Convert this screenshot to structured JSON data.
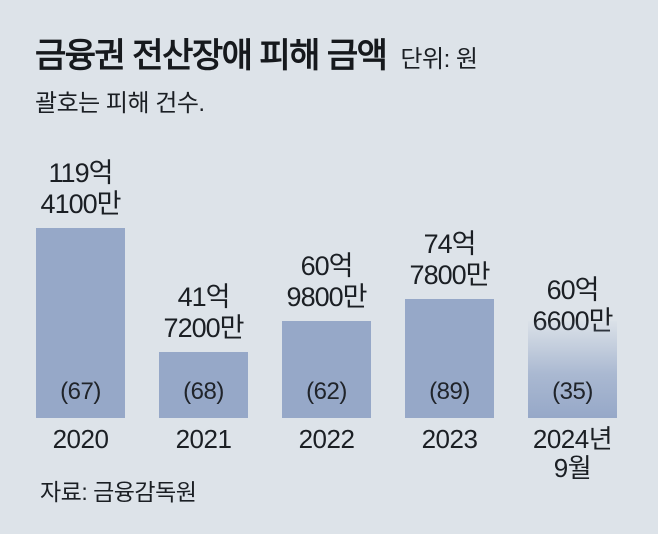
{
  "header": {
    "title": "금융권 전산장애 피해 금액",
    "unit": "단위: 원",
    "subtitle": "괄호는 피해 건수."
  },
  "source": "자료: 금융감독원",
  "colors": {
    "background": "#dde3e9",
    "bar": "#96a8c8",
    "text": "#1b1f24"
  },
  "chart_data": {
    "type": "bar",
    "title": "금융권 전산장애 피해 금액",
    "unit_label": "단위: 원",
    "note": "괄호는 피해 건수.",
    "categories": [
      "2020",
      "2021",
      "2022",
      "2023",
      "2024년\n9월"
    ],
    "values_eok_won": [
      119.41,
      41.72,
      60.98,
      74.78,
      60.66
    ],
    "values_won": [
      11941000000,
      4172000000,
      6098000000,
      7478000000,
      6066000000
    ],
    "value_labels": [
      "119억\n4100만",
      "41억\n7200만",
      "60억\n9800만",
      "74억\n7800만",
      "60억\n6600만"
    ],
    "counts": [
      67,
      68,
      62,
      89,
      35
    ],
    "count_labels": [
      "(67)",
      "(68)",
      "(62)",
      "(89)",
      "(35)"
    ],
    "gradient_bar_index": 4,
    "legend": "none",
    "grid": "off",
    "axis_lines": "none",
    "source": "자료: 금융감독원"
  }
}
